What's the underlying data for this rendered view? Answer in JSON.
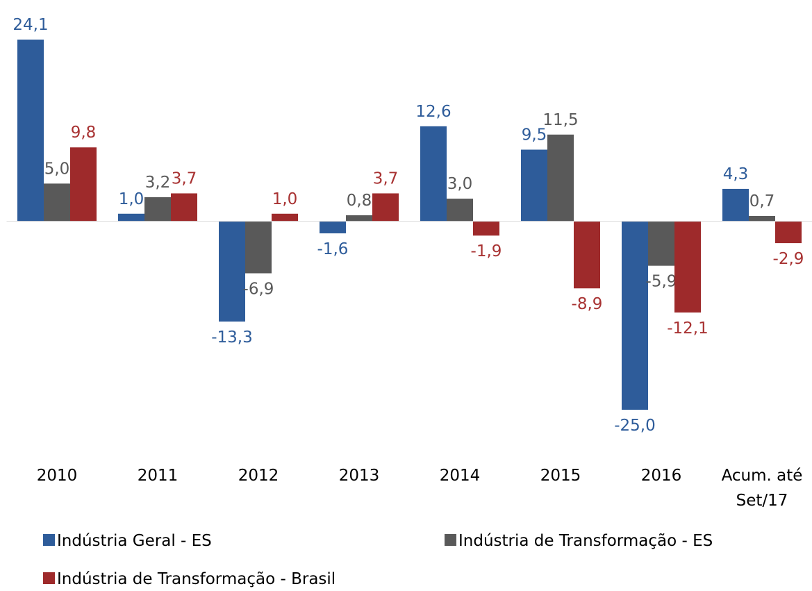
{
  "chart_data": {
    "type": "bar",
    "categories": [
      "2010",
      "2011",
      "2012",
      "2013",
      "2014",
      "2015",
      "2016",
      "Acum. até Set/17"
    ],
    "series": [
      {
        "name": "Indústria Geral - ES",
        "color": "#2e5c9a",
        "label_color": "#2e5c9a",
        "values": [
          24.1,
          1.0,
          -13.3,
          -1.6,
          12.6,
          9.5,
          -25.0,
          4.3
        ],
        "value_labels": [
          "24,1",
          "1,0",
          "-13,3",
          "-1,6",
          "12,6",
          "9,5",
          "-25,0",
          "4,3"
        ]
      },
      {
        "name": "Indústria de Transformação - ES",
        "color": "#595959",
        "label_color": "#595959",
        "values": [
          5.0,
          3.2,
          -6.9,
          0.8,
          3.0,
          11.5,
          -5.9,
          0.7
        ],
        "value_labels": [
          "5,0",
          "3,2",
          "-6,9",
          "0,8",
          "3,0",
          "11,5",
          "-5,9",
          "0,7"
        ]
      },
      {
        "name": "Indústria de Transformação - Brasil",
        "color": "#9e2a2b",
        "label_color": "#a83232",
        "values": [
          9.8,
          3.7,
          1.0,
          3.7,
          -1.9,
          -8.9,
          -12.1,
          -2.9
        ],
        "value_labels": [
          "9,8",
          "3,7",
          "1,0",
          "3,7",
          "-1,9",
          "-8,9",
          "-12,1",
          "-2,9"
        ]
      }
    ],
    "legend": "bottom"
  }
}
